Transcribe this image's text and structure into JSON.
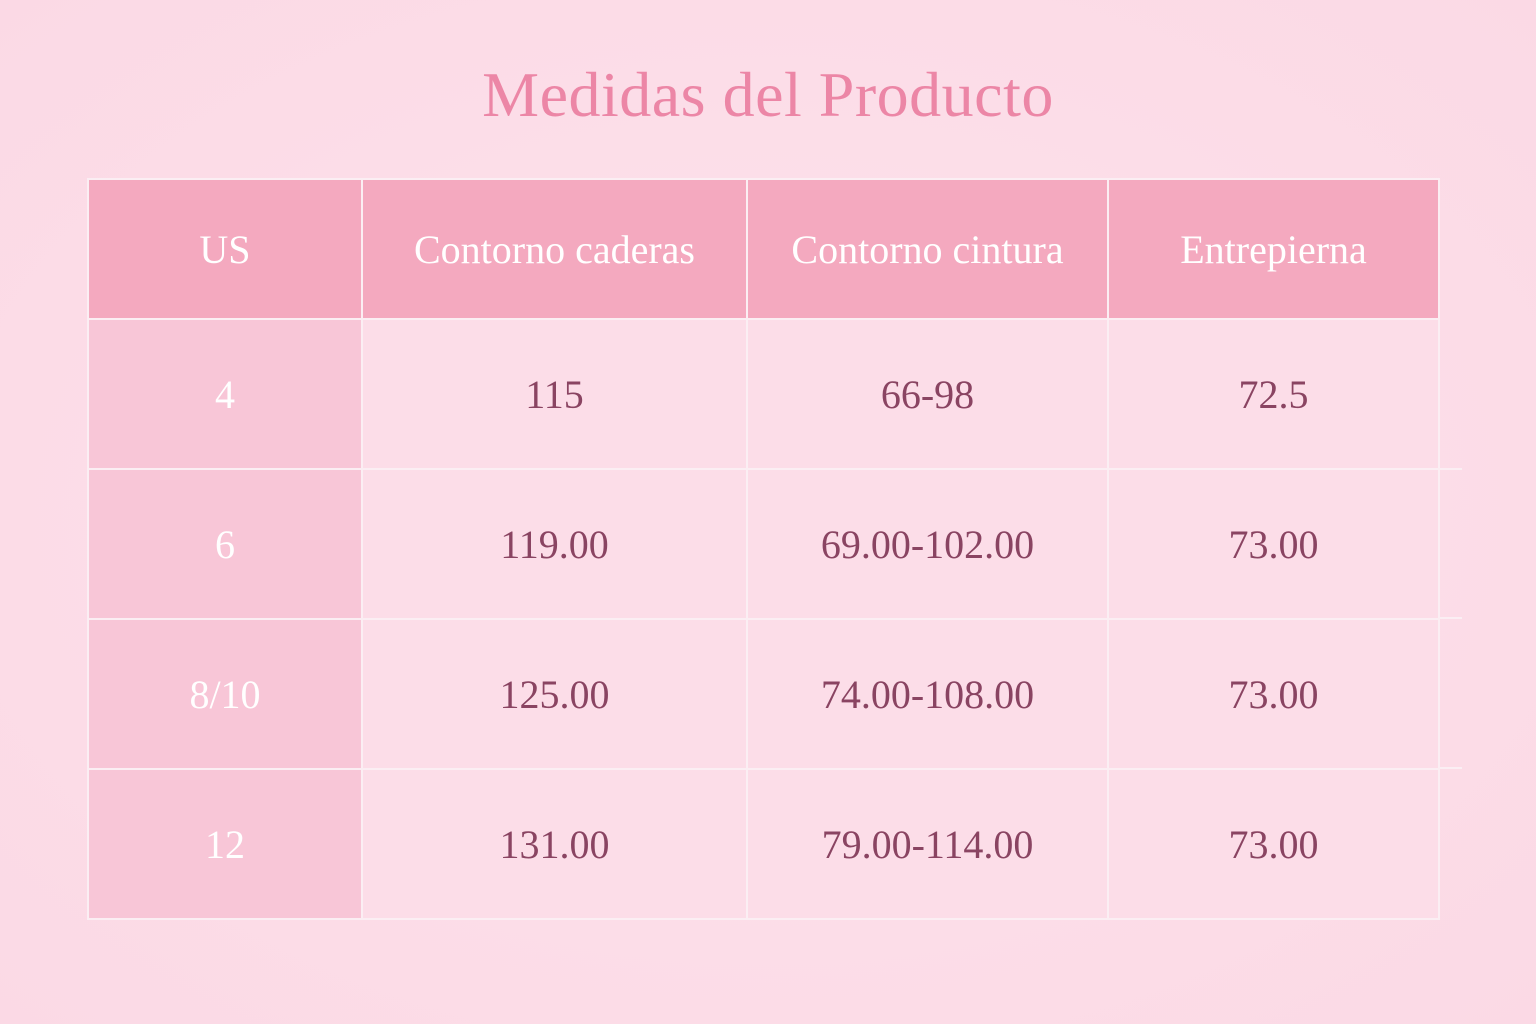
{
  "title": "Medidas del Producto",
  "table": {
    "headers": [
      "US",
      "Contorno caderas",
      "Contorno cintura",
      "Entrepierna"
    ],
    "rows": [
      [
        "4",
        "115",
        "66-98",
        "72.5"
      ],
      [
        "6",
        "119.00",
        "69.00-102.00",
        "73.00"
      ],
      [
        "8/10",
        "125.00",
        "74.00-108.00",
        "73.00"
      ],
      [
        "12",
        "131.00",
        "79.00-114.00",
        "73.00"
      ]
    ]
  },
  "colors": {
    "title": "#ec86a6",
    "header_bg": "#f4a9bf",
    "first_col_bg": "#f8c6d7",
    "cell_bg": "#fcdde8",
    "cell_text": "#8a4462"
  }
}
